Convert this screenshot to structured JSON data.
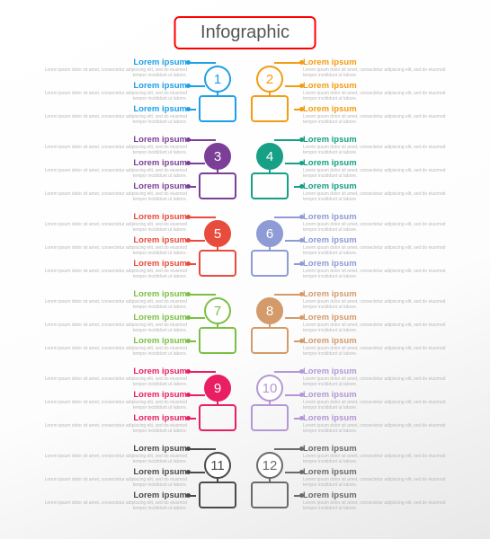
{
  "title": {
    "text": "Infographic",
    "border_color": "#ff0000",
    "text_color": "#555555"
  },
  "layout": {
    "lorem_title": "Lorem ipsum",
    "lorem_body": "Lorem ipsum dolor sit amet, consectetur adipiscing elit, sed do eiusmod tempor incididunt ut labore.",
    "connector_widths": [
      30,
      18,
      8
    ]
  },
  "rows": [
    {
      "left": {
        "num": "1",
        "color": "#1ea0e6",
        "filled": false
      },
      "right": {
        "num": "2",
        "color": "#f39c12",
        "filled": false
      }
    },
    {
      "left": {
        "num": "3",
        "color": "#7b3f98",
        "filled": true
      },
      "right": {
        "num": "4",
        "color": "#16a085",
        "filled": true
      }
    },
    {
      "left": {
        "num": "5",
        "color": "#e74c3c",
        "filled": true
      },
      "right": {
        "num": "6",
        "color": "#8e9bd4",
        "filled": true
      }
    },
    {
      "left": {
        "num": "7",
        "color": "#7bc043",
        "filled": false
      },
      "right": {
        "num": "8",
        "color": "#d49a6a",
        "filled": true
      }
    },
    {
      "left": {
        "num": "9",
        "color": "#e91e63",
        "filled": true
      },
      "right": {
        "num": "10",
        "color": "#b497d6",
        "filled": false
      }
    },
    {
      "left": {
        "num": "11",
        "color": "#4a4a4a",
        "filled": false
      },
      "right": {
        "num": "12",
        "color": "#6a6a6a",
        "filled": false
      }
    }
  ]
}
